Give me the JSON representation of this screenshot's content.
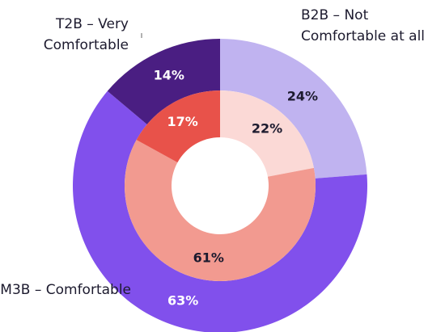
{
  "chart_data": {
    "type": "nested-donut",
    "categories": [
      "B2B – Not Comfortable at all",
      "M3B – Comfortable",
      "T2B – Very Comfortable"
    ],
    "rings": [
      {
        "values": [
          24,
          63,
          14
        ],
        "value_labels": [
          "24%",
          "63%",
          "14%"
        ],
        "colors": [
          "#c0b3f0",
          "#8150ec",
          "#4a1e82"
        ]
      },
      {
        "values": [
          22,
          61,
          17
        ],
        "value_labels": [
          "22%",
          "61%",
          "17%"
        ],
        "colors": [
          "#fbd9d6",
          "#f29a90",
          "#e8524a"
        ]
      }
    ]
  }
}
